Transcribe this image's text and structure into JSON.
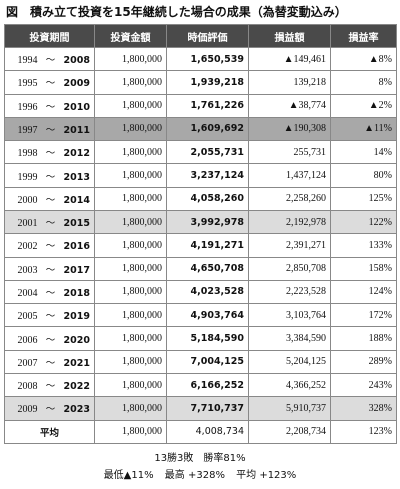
{
  "title": "図　積み立て投資を15年継続した場合の成果（為替変動込み）",
  "headers": [
    "投資期間",
    "投資金額",
    "時価評価",
    "損益額",
    "損益率"
  ],
  "period_sep": "〜",
  "rows": [
    {
      "start": "1994",
      "end": "2008",
      "invest": "1,800,000",
      "value": "1,650,539",
      "pl": "▲149,461",
      "rate": "▲8%",
      "shade": "none"
    },
    {
      "start": "1995",
      "end": "2009",
      "invest": "1,800,000",
      "value": "1,939,218",
      "pl": "139,218",
      "rate": "8%",
      "shade": "none"
    },
    {
      "start": "1996",
      "end": "2010",
      "invest": "1,800,000",
      "value": "1,761,226",
      "pl": "▲38,774",
      "rate": "▲2%",
      "shade": "none"
    },
    {
      "start": "1997",
      "end": "2011",
      "invest": "1,800,000",
      "value": "1,609,692",
      "pl": "▲190,308",
      "rate": "▲11%",
      "shade": "dark"
    },
    {
      "start": "1998",
      "end": "2012",
      "invest": "1,800,000",
      "value": "2,055,731",
      "pl": "255,731",
      "rate": "14%",
      "shade": "none"
    },
    {
      "start": "1999",
      "end": "2013",
      "invest": "1,800,000",
      "value": "3,237,124",
      "pl": "1,437,124",
      "rate": "80%",
      "shade": "none"
    },
    {
      "start": "2000",
      "end": "2014",
      "invest": "1,800,000",
      "value": "4,058,260",
      "pl": "2,258,260",
      "rate": "125%",
      "shade": "none"
    },
    {
      "start": "2001",
      "end": "2015",
      "invest": "1,800,000",
      "value": "3,992,978",
      "pl": "2,192,978",
      "rate": "122%",
      "shade": "light"
    },
    {
      "start": "2002",
      "end": "2016",
      "invest": "1,800,000",
      "value": "4,191,271",
      "pl": "2,391,271",
      "rate": "133%",
      "shade": "none"
    },
    {
      "start": "2003",
      "end": "2017",
      "invest": "1,800,000",
      "value": "4,650,708",
      "pl": "2,850,708",
      "rate": "158%",
      "shade": "none"
    },
    {
      "start": "2004",
      "end": "2018",
      "invest": "1,800,000",
      "value": "4,023,528",
      "pl": "2,223,528",
      "rate": "124%",
      "shade": "none"
    },
    {
      "start": "2005",
      "end": "2019",
      "invest": "1,800,000",
      "value": "4,903,764",
      "pl": "3,103,764",
      "rate": "172%",
      "shade": "none"
    },
    {
      "start": "2006",
      "end": "2020",
      "invest": "1,800,000",
      "value": "5,184,590",
      "pl": "3,384,590",
      "rate": "188%",
      "shade": "none"
    },
    {
      "start": "2007",
      "end": "2021",
      "invest": "1,800,000",
      "value": "7,004,125",
      "pl": "5,204,125",
      "rate": "289%",
      "shade": "none"
    },
    {
      "start": "2008",
      "end": "2022",
      "invest": "1,800,000",
      "value": "6,166,252",
      "pl": "4,366,252",
      "rate": "243%",
      "shade": "none"
    },
    {
      "start": "2009",
      "end": "2023",
      "invest": "1,800,000",
      "value": "7,710,737",
      "pl": "5,910,737",
      "rate": "328%",
      "shade": "light"
    }
  ],
  "average": {
    "label": "平均",
    "invest": "1,800,000",
    "value": "4,008,734",
    "pl": "2,208,734",
    "rate": "123%"
  },
  "summary": {
    "line1": "13勝3敗　勝率81%",
    "min": "最低▲11%",
    "max": "最高 +328%",
    "avg": "平均 +123%"
  },
  "colors": {
    "header_bg": "#4a4a4a",
    "dark_row": "#a8a8a8",
    "light_row": "#dcdcdc",
    "border": "#888888"
  }
}
